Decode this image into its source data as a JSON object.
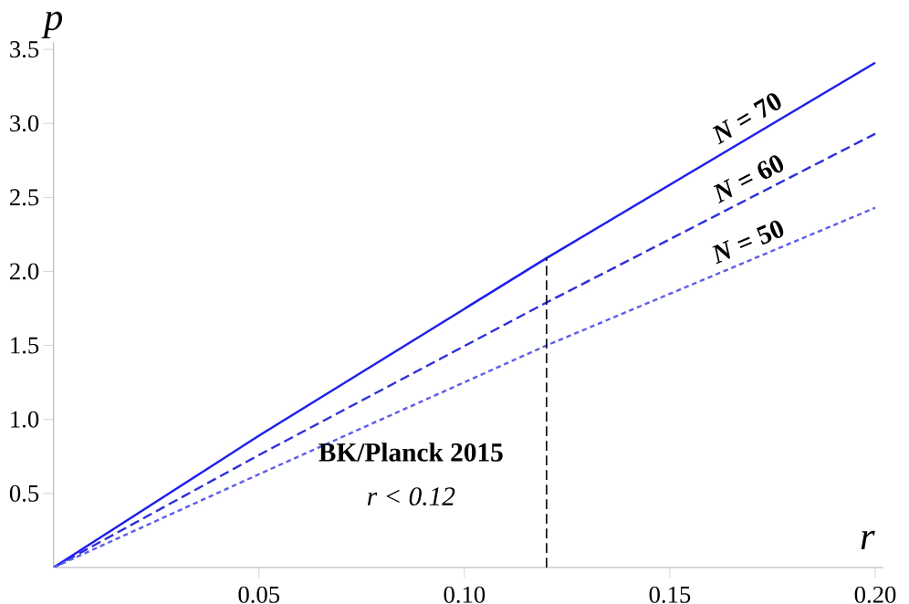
{
  "chart_data": {
    "type": "line",
    "xlabel": "r",
    "ylabel": "p",
    "xlim": [
      0,
      0.202
    ],
    "ylim": [
      0,
      3.55
    ],
    "xticks": [
      0.05,
      {
        "value": 0.1,
        "label": "0.10"
      },
      0.15,
      {
        "value": 0.2,
        "label": "0.20"
      }
    ],
    "yticks": [
      0.5,
      {
        "value": 1,
        "label": "1.0"
      },
      1.5,
      {
        "value": 2,
        "label": "2.0"
      },
      2.5,
      {
        "value": 3,
        "label": "3.0"
      },
      3.5
    ],
    "grid": false,
    "legend": false,
    "marker": "none",
    "series": [
      {
        "name": "*N* = 70",
        "color": "#1a1aff",
        "line_style": "solid",
        "x": [
          0,
          0.05,
          0.12,
          0.2
        ],
        "values": [
          0,
          0.89,
          2.09,
          3.41
        ]
      },
      {
        "name": "*N* = 60",
        "color": "#2a2aee",
        "line_style": "dashed",
        "x": [
          0,
          0.05,
          0.12,
          0.2
        ],
        "values": [
          0,
          0.76,
          1.79,
          2.93
        ]
      },
      {
        "name": "*N* = 50",
        "color": "#5a5aff",
        "line_style": "dotted",
        "x": [
          0,
          0.05,
          0.12,
          0.2
        ],
        "values": [
          0,
          0.63,
          1.5,
          2.43
        ]
      },
      {
        "color": "#000000",
        "line_style": "dashed",
        "x": [
          0.12,
          0.12
        ],
        "values": [
          0,
          2.09
        ]
      }
    ],
    "annotations": [
      "BK/Planck 2015",
      "r < 0.12"
    ]
  }
}
